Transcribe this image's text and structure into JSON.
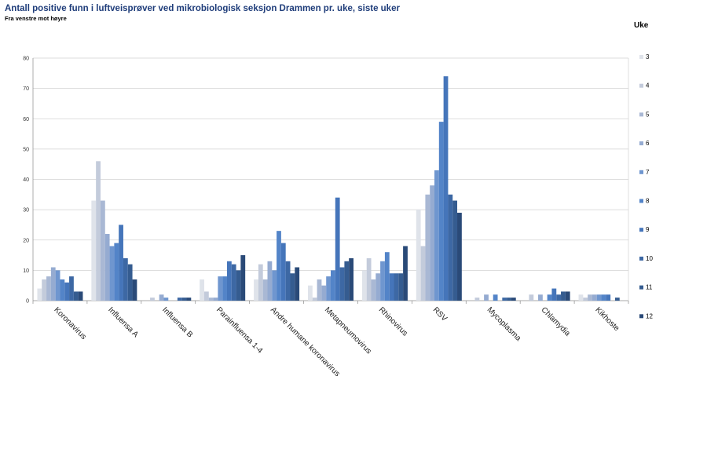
{
  "chart_data": {
    "type": "bar",
    "title": "Antall positive funn i luftveisprøver ved mikrobiologisk seksjon Drammen pr. uke, siste uker",
    "subtitle": "Fra venstre mot høyre",
    "legend_title": "Uke",
    "ylim": [
      0,
      80
    ],
    "yticks": [
      0,
      10,
      20,
      30,
      40,
      50,
      60,
      70,
      80
    ],
    "grid": true,
    "legend_position": "right",
    "categories": [
      "Koronavirus",
      "Influensa A",
      "Influensa B",
      "Parainfluensa 1-4",
      "Andre humane koronavirus",
      "Metapneumovirus",
      "Rhinovirus",
      "RSV",
      "Mycoplasma",
      "Chlamydia",
      "Kikhoste"
    ],
    "series": [
      {
        "name": "3",
        "color": "#dfe3ea",
        "values": [
          4,
          33,
          0,
          7,
          7,
          5,
          10,
          30,
          0,
          0,
          2
        ]
      },
      {
        "name": "4",
        "color": "#c3cbdb",
        "values": [
          7,
          46,
          1,
          3,
          12,
          1,
          14,
          18,
          1,
          2,
          1
        ]
      },
      {
        "name": "5",
        "color": "#a9b8d4",
        "values": [
          8,
          33,
          0,
          1,
          7,
          7,
          7,
          35,
          0,
          0,
          2
        ]
      },
      {
        "name": "6",
        "color": "#95abd1",
        "values": [
          11,
          22,
          2,
          1,
          13,
          5,
          9,
          38,
          2,
          2,
          2
        ]
      },
      {
        "name": "7",
        "color": "#6f96cf",
        "values": [
          10,
          18,
          1,
          8,
          10,
          8,
          13,
          43,
          0,
          0,
          2
        ]
      },
      {
        "name": "8",
        "color": "#5384c8",
        "values": [
          7,
          19,
          0,
          8,
          23,
          10,
          16,
          59,
          2,
          2,
          2
        ]
      },
      {
        "name": "9",
        "color": "#4575ba",
        "values": [
          6,
          25,
          0,
          13,
          19,
          34,
          9,
          74,
          0,
          4,
          2
        ]
      },
      {
        "name": "10",
        "color": "#3d68a4",
        "values": [
          8,
          14,
          1,
          12,
          13,
          11,
          9,
          35,
          1,
          2,
          0
        ]
      },
      {
        "name": "11",
        "color": "#355c90",
        "values": [
          3,
          12,
          1,
          10,
          9,
          13,
          9,
          33,
          1,
          3,
          1
        ]
      },
      {
        "name": "12",
        "color": "#2a4a78",
        "values": [
          3,
          7,
          1,
          15,
          11,
          14,
          18,
          29,
          1,
          3,
          0
        ]
      }
    ]
  }
}
